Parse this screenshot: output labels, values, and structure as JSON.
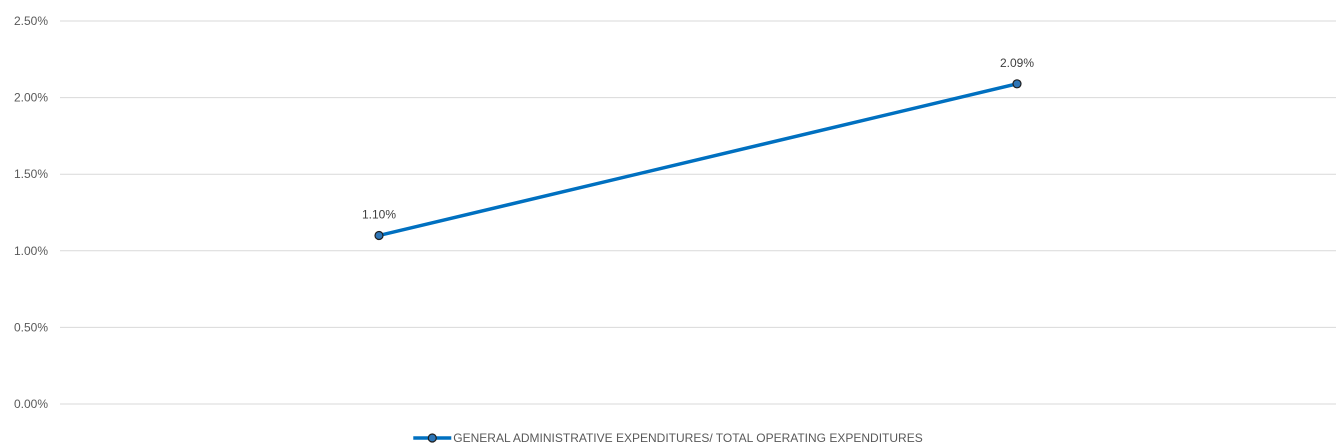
{
  "chart_data": {
    "type": "line",
    "title": "",
    "xlabel": "",
    "ylabel": "",
    "categories": [
      "",
      ""
    ],
    "y_ticks": [
      "0.00%",
      "0.50%",
      "1.00%",
      "1.50%",
      "2.00%",
      "2.50%"
    ],
    "ylim": [
      0,
      2.5
    ],
    "y_unit": "%",
    "grid": true,
    "legend_position": "bottom",
    "series": [
      {
        "name": "GENERAL ADMINISTRATIVE EXPENDITURES/ TOTAL OPERATING EXPENDITURES",
        "values": [
          1.1,
          2.09
        ],
        "labels": [
          "1.10%",
          "2.09%"
        ],
        "color": "#0070c0",
        "marker_color": "#2e75b6",
        "marker_edge": "#1f1f1f"
      }
    ]
  }
}
